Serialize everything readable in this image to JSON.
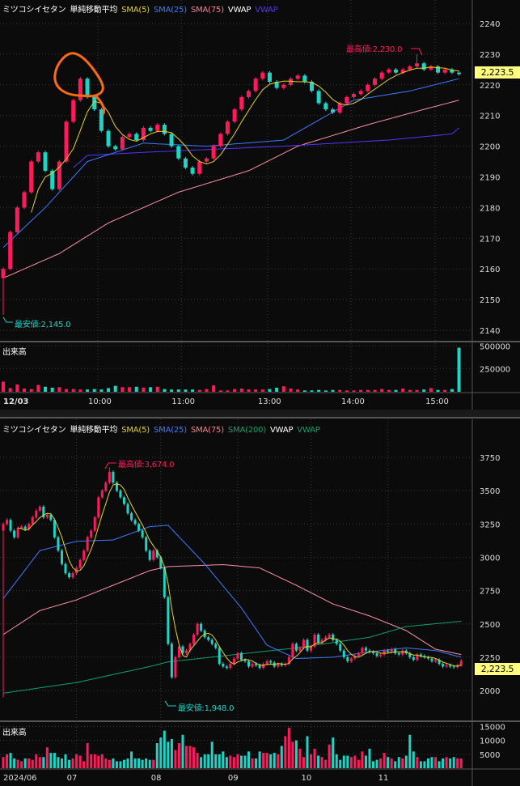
{
  "colors": {
    "up": "#ff1a5e",
    "down": "#1fd3c6",
    "sma5": "#e6d21e",
    "sma25": "#3a7cff",
    "sma75": "#ff8fa8",
    "sma200": "#10a070",
    "vwap_intraday": "#5533ff",
    "price_label_bg": "#ffff80",
    "background": "#0b0b0b",
    "annotation_circle": "#ff6a10"
  },
  "intraday": {
    "legend": {
      "name": "ミツコシイセタン",
      "type": "単純移動平均",
      "sma5": "SMA(5)",
      "sma25": "SMA(25)",
      "sma75": "SMA(75)",
      "vwap": "VWAP",
      "vwap2": "VWAP"
    },
    "volume_label": "出来高",
    "current_price": "2,223.5",
    "high_label": "最高値:2,230.0",
    "low_label": "最安値:2,145.0"
  },
  "daily": {
    "legend": {
      "name": "ミツコシイセタン",
      "type": "単純移動平均",
      "sma5": "SMA(5)",
      "sma25": "SMA(25)",
      "sma75": "SMA(75)",
      "sma200": "SMA(200)",
      "vwap": "VWAP",
      "vwap2": "VWAP"
    },
    "volume_label": "出来高",
    "current_price": "2,223.5",
    "high_label": "最高値:3,674.0",
    "low_label": "最安値:1,948.0"
  },
  "chart_data": [
    {
      "type": "candlestick",
      "interval": "5min",
      "date": "12/03",
      "ylim": [
        2135,
        2245
      ],
      "y_ticks": [
        2140,
        2150,
        2160,
        2170,
        2180,
        2190,
        2200,
        2210,
        2220,
        2230,
        2240
      ],
      "x_ticks": [
        {
          "label": "12/03",
          "index": 2
        },
        {
          "label": "10:00",
          "index": 13.5
        },
        {
          "label": "11:00",
          "index": 25.4
        },
        {
          "label": "13:00",
          "index": 37.7
        },
        {
          "label": "14:00",
          "index": 49.6
        },
        {
          "label": "15:00",
          "index": 61.6
        }
      ],
      "close": [
        2160,
        2172,
        2180,
        2185,
        2195,
        2198,
        2192,
        2186,
        2195,
        2208,
        2215,
        2222,
        2216,
        2212,
        2205,
        2200,
        2199,
        2203,
        2204,
        2202,
        2206,
        2205,
        2207,
        2204,
        2200,
        2196,
        2193,
        2191,
        2195,
        2196,
        2200,
        2204,
        2208,
        2212,
        2216,
        2218,
        2222,
        2224,
        2221,
        2219,
        2220,
        2222,
        2223,
        2221,
        2218,
        2214,
        2212,
        2211,
        2214,
        2216,
        2217,
        2218,
        2220,
        2222,
        2224,
        2225,
        2224,
        2225,
        2226,
        2227,
        2225,
        2226,
        2224,
        2225,
        2224,
        2223.5
      ],
      "first_open": 2157,
      "high": 2230.0,
      "low": 2145.0,
      "sma25": [
        [
          0,
          2167
        ],
        [
          6,
          2180
        ],
        [
          12,
          2195
        ],
        [
          20,
          2201
        ],
        [
          29,
          2200
        ],
        [
          40,
          2202
        ],
        [
          50,
          2215
        ],
        [
          58,
          2218
        ],
        [
          65,
          2222
        ]
      ],
      "sma75": [
        [
          0,
          2157
        ],
        [
          8,
          2165
        ],
        [
          15,
          2175
        ],
        [
          25,
          2185
        ],
        [
          35,
          2192
        ],
        [
          42,
          2200
        ],
        [
          52,
          2207
        ],
        [
          60,
          2212
        ],
        [
          65,
          2215
        ]
      ],
      "vwap": [
        [
          10,
          2193
        ],
        [
          12,
          2197
        ],
        [
          20,
          2198
        ],
        [
          30,
          2199
        ],
        [
          40,
          2200
        ],
        [
          55,
          2202
        ],
        [
          64,
          2204
        ],
        [
          65,
          2206
        ]
      ],
      "volume": [
        110000,
        40000,
        80000,
        35000,
        30000,
        75000,
        55000,
        45000,
        50000,
        30000,
        30000,
        25000,
        25000,
        30000,
        25000,
        40000,
        65000,
        50000,
        50000,
        55000,
        45000,
        50000,
        55000,
        30000,
        25000,
        25000,
        25000,
        25000,
        20000,
        30000,
        70000,
        15000,
        15000,
        30000,
        35000,
        25000,
        25000,
        25000,
        30000,
        45000,
        60000,
        35000,
        25000,
        15000,
        15000,
        20000,
        15000,
        20000,
        20000,
        15000,
        15000,
        20000,
        20000,
        20000,
        30000,
        20000,
        20000,
        35000,
        20000,
        20000,
        25000,
        40000,
        20000,
        20000,
        30000,
        480000
      ],
      "volume_ticks": [
        250000,
        500000
      ],
      "volume_max": 520000
    },
    {
      "type": "candlestick",
      "interval": "daily",
      "ylim": [
        1800,
        3870
      ],
      "y_ticks": [
        2000,
        2250,
        2500,
        2750,
        3000,
        3250,
        3500,
        3750
      ],
      "x_ticks": [
        {
          "label": "2024/06",
          "index": 0
        },
        {
          "label": "07",
          "index": 20
        },
        {
          "label": "08",
          "index": 43
        },
        {
          "label": "09",
          "index": 64
        },
        {
          "label": "10",
          "index": 84
        },
        {
          "label": "11",
          "index": 105
        }
      ],
      "close": [
        3250,
        3280,
        3200,
        3150,
        3220,
        3230,
        3210,
        3250,
        3300,
        3350,
        3380,
        3300,
        3320,
        3280,
        3150,
        3050,
        2950,
        2880,
        2850,
        2880,
        2920,
        2980,
        3050,
        3150,
        3200,
        3300,
        3450,
        3500,
        3560,
        3640,
        3560,
        3500,
        3450,
        3400,
        3330,
        3280,
        3250,
        3200,
        3150,
        3050,
        2980,
        3050,
        3000,
        2920,
        2700,
        2350,
        2100,
        2250,
        2330,
        2280,
        2300,
        2350,
        2420,
        2500,
        2450,
        2400,
        2380,
        2350,
        2320,
        2200,
        2180,
        2170,
        2200,
        2240,
        2280,
        2230,
        2220,
        2180,
        2200,
        2190,
        2170,
        2200,
        2220,
        2210,
        2180,
        2200,
        2190,
        2200,
        2250,
        2350,
        2300,
        2320,
        2380,
        2300,
        2330,
        2420,
        2360,
        2380,
        2400,
        2420,
        2380,
        2350,
        2300,
        2250,
        2220,
        2240,
        2260,
        2280,
        2320,
        2300,
        2290,
        2280,
        2260,
        2270,
        2300,
        2290,
        2310,
        2280,
        2270,
        2300,
        2280,
        2250,
        2230,
        2270,
        2260,
        2250,
        2240,
        2220,
        2230,
        2200,
        2180,
        2190,
        2180,
        2175,
        2190,
        2223.5
      ],
      "first_open": 3200,
      "high": 3674.0,
      "low": 1948.0,
      "sma25": [
        [
          0,
          2690
        ],
        [
          10,
          3050
        ],
        [
          20,
          3120
        ],
        [
          30,
          3130
        ],
        [
          40,
          3230
        ],
        [
          45,
          3240
        ],
        [
          55,
          2950
        ],
        [
          65,
          2620
        ],
        [
          72,
          2340
        ],
        [
          80,
          2240
        ],
        [
          90,
          2250
        ],
        [
          100,
          2290
        ],
        [
          110,
          2320
        ],
        [
          118,
          2300
        ],
        [
          125,
          2250
        ]
      ],
      "sma75": [
        [
          0,
          2420
        ],
        [
          10,
          2600
        ],
        [
          20,
          2680
        ],
        [
          30,
          2790
        ],
        [
          40,
          2900
        ],
        [
          45,
          2930
        ],
        [
          60,
          2945
        ],
        [
          70,
          2920
        ],
        [
          80,
          2790
        ],
        [
          90,
          2650
        ],
        [
          100,
          2560
        ],
        [
          110,
          2450
        ],
        [
          118,
          2310
        ],
        [
          125,
          2270
        ]
      ],
      "sma200": [
        [
          0,
          1980
        ],
        [
          20,
          2060
        ],
        [
          40,
          2180
        ],
        [
          45,
          2215
        ],
        [
          60,
          2260
        ],
        [
          80,
          2320
        ],
        [
          100,
          2400
        ],
        [
          110,
          2480
        ],
        [
          125,
          2520
        ]
      ],
      "volume": [
        4000,
        5000,
        5500,
        3500,
        3000,
        2500,
        3500,
        3500,
        3000,
        5000,
        4000,
        4000,
        7500,
        5500,
        5500,
        4000,
        3500,
        5000,
        3000,
        3500,
        5000,
        4500,
        2500,
        9000,
        5000,
        5000,
        4500,
        5000,
        3500,
        3000,
        3500,
        2500,
        2500,
        3000,
        3500,
        6000,
        3500,
        3500,
        3000,
        3500,
        3000,
        3000,
        9000,
        11000,
        13500,
        9500,
        10500,
        6500,
        9000,
        12000,
        8000,
        8000,
        7500,
        5500,
        4000,
        5000,
        5000,
        9500,
        5000,
        5000,
        6000,
        4000,
        4500,
        4000,
        5000,
        4500,
        4500,
        6000,
        3500,
        3500,
        6000,
        5500,
        5500,
        5000,
        5500,
        5000,
        8000,
        11500,
        14500,
        9500,
        10000,
        7000,
        4000,
        11500,
        5000,
        7000,
        4500,
        4000,
        3000,
        8500,
        11000,
        5000,
        3000,
        4500,
        4500,
        4000,
        4500,
        3000,
        6000,
        4500,
        7000,
        2500,
        3000,
        3500,
        5500,
        4000,
        3500,
        2500,
        4000,
        3500,
        4500,
        12000,
        6000,
        4000,
        2500,
        2500,
        3500,
        4000,
        4000,
        2500,
        3500,
        4000,
        3500,
        4000,
        3500,
        3500
      ],
      "volume_ticks": [
        5000,
        10000,
        15000
      ],
      "volume_max": 16000
    }
  ]
}
